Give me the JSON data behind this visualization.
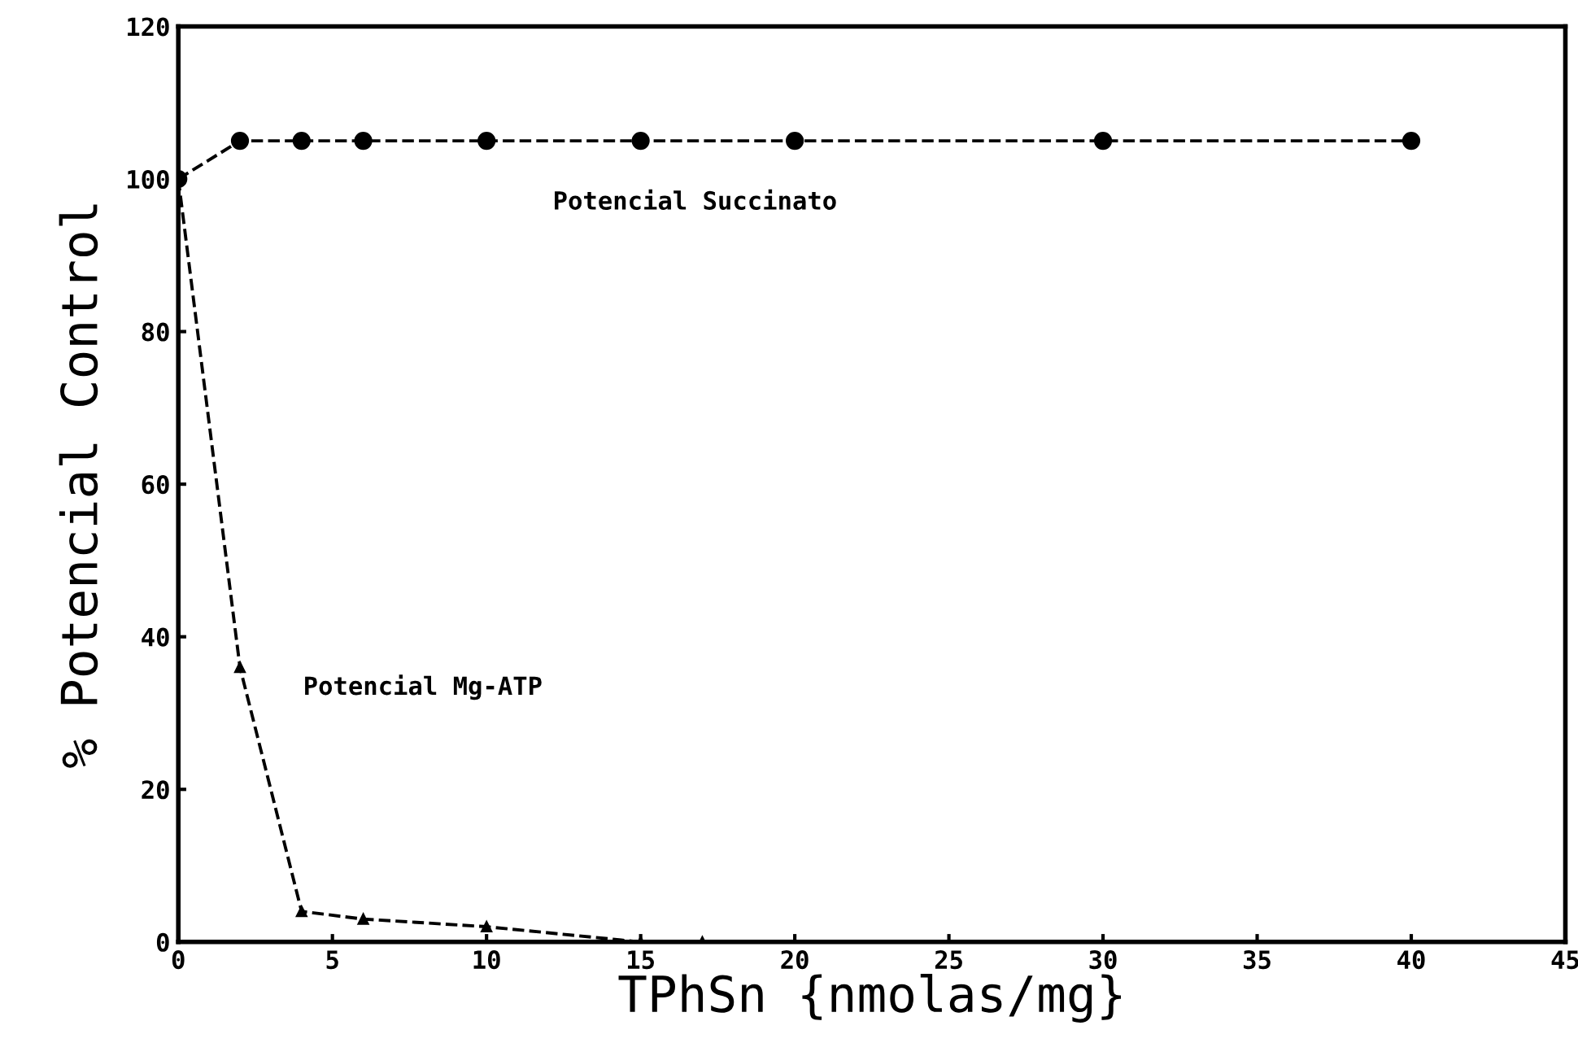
{
  "chart_data": {
    "type": "line",
    "xlabel": "TPhSn {nmolas/mg}",
    "ylabel": "% Potencial Control",
    "xlim": [
      0,
      45
    ],
    "xticks": [
      0,
      5,
      10,
      15,
      20,
      25,
      30,
      35,
      40,
      45
    ],
    "ylim": [
      0,
      120
    ],
    "yticks": [
      0,
      20,
      40,
      60,
      80,
      100,
      120
    ],
    "grid": false,
    "legend": false,
    "series": [
      {
        "name": "Potencial Succinato",
        "color": "#000000",
        "marker": "circle",
        "line_style": "dashed",
        "x": [
          0,
          2,
          4,
          6,
          10,
          15,
          20,
          30,
          40
        ],
        "values": [
          100,
          105,
          105,
          105,
          105,
          105,
          105,
          105,
          105
        ]
      },
      {
        "name": "Potencial Mg-ATP",
        "color": "#000000",
        "marker": "triangle",
        "line_style": "dashed",
        "x": [
          0,
          2,
          4,
          6,
          10,
          15,
          17
        ],
        "values": [
          100,
          36,
          4,
          3,
          2,
          0,
          0
        ]
      }
    ]
  }
}
